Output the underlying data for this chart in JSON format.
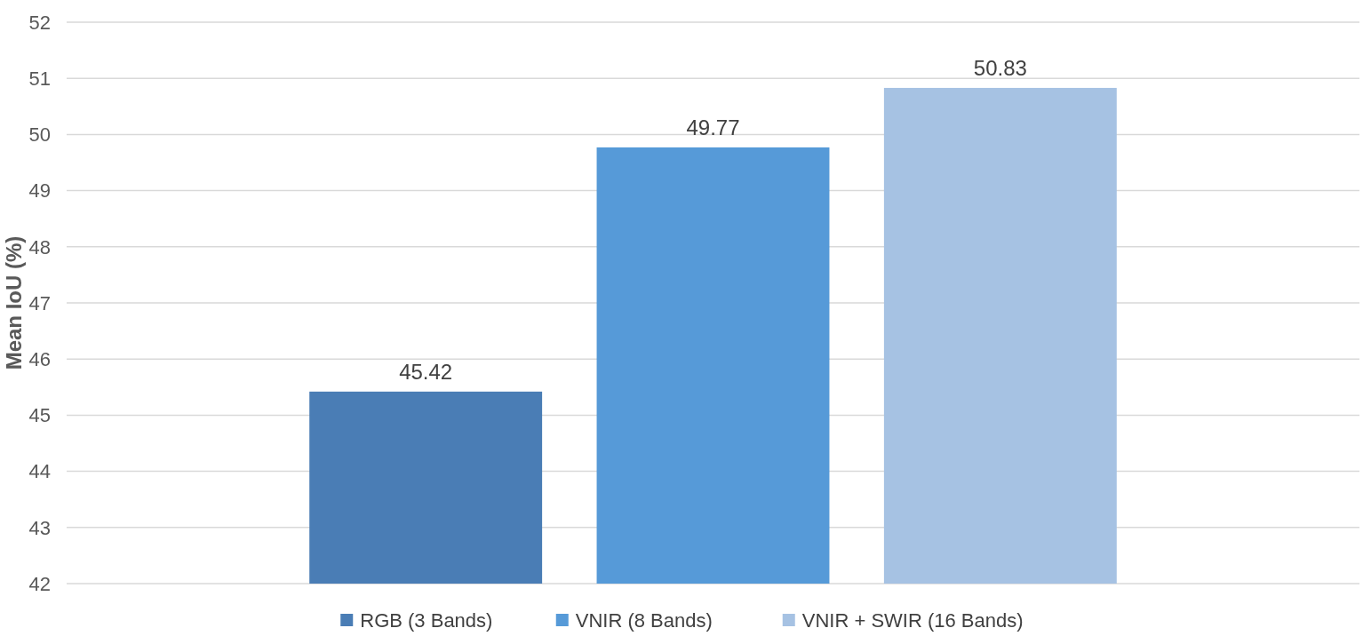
{
  "chart_data": {
    "type": "bar",
    "ylabel": "Mean IoU (%)",
    "categories": [
      null
    ],
    "series": [
      {
        "name": "RGB (3 Bands)",
        "color": "#4a7db5",
        "values": [
          45.42
        ]
      },
      {
        "name": "VNIR (8 Bands)",
        "color": "#569ad8",
        "values": [
          49.77
        ]
      },
      {
        "name": "VNIR + SWIR (16 Bands)",
        "color": "#a6c2e3",
        "values": [
          50.83
        ]
      }
    ],
    "ylim": [
      42,
      52
    ],
    "yticks": [
      42,
      43,
      44,
      45,
      46,
      47,
      48,
      49,
      50,
      51,
      52
    ],
    "grid": "y",
    "data_labels": true,
    "legend": "bottom"
  }
}
